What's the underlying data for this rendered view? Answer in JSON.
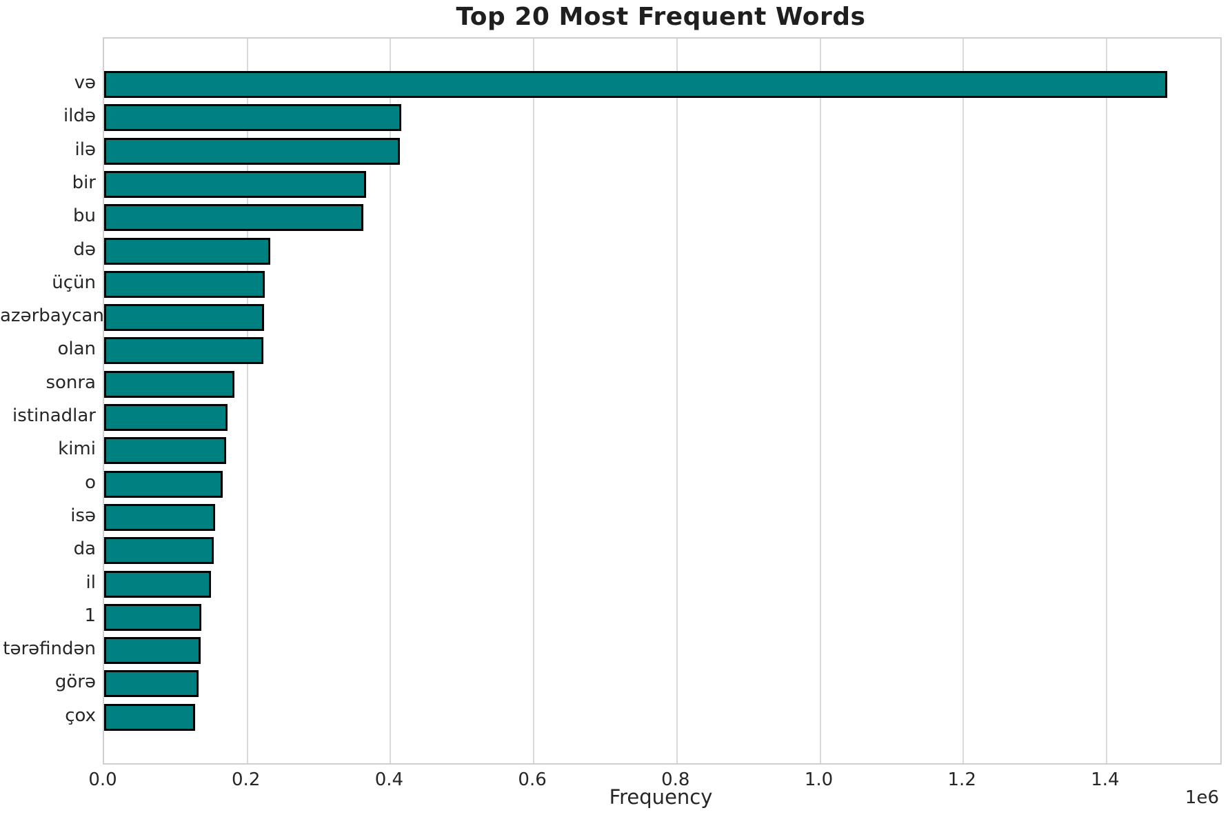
{
  "title": "Top 20 Most Frequent Words",
  "chart_data": {
    "type": "bar",
    "orientation": "horizontal",
    "title": "Top 20 Most Frequent Words",
    "xlabel": "Frequency",
    "ylabel": "",
    "categories": [
      "və",
      "ildə",
      "ilə",
      "bir",
      "bu",
      "də",
      "üçün",
      "azərbaycan",
      "olan",
      "sonra",
      "istinadlar",
      "kimi",
      "o",
      "isə",
      "da",
      "il",
      "1",
      "tərəfindən",
      "görə",
      "çox"
    ],
    "values": [
      1485000,
      415000,
      413000,
      366000,
      362000,
      232000,
      224000,
      223000,
      222000,
      182000,
      172000,
      170000,
      166000,
      155000,
      153000,
      149000,
      136000,
      135000,
      132000,
      127500
    ],
    "xlim": [
      0,
      1559000
    ],
    "x_ticks": [
      0,
      200000,
      400000,
      600000,
      800000,
      1000000,
      1200000,
      1400000
    ],
    "x_tick_labels": [
      "0.0",
      "0.2",
      "0.4",
      "0.6",
      "0.8",
      "1.0",
      "1.2",
      "1.4"
    ],
    "offset_text": "1e6",
    "grid": true,
    "legend": "none",
    "bar_color": "#008080",
    "bar_edge_color": "#000000",
    "grid_color": "#d9d9d9",
    "text_color": "#262626"
  }
}
